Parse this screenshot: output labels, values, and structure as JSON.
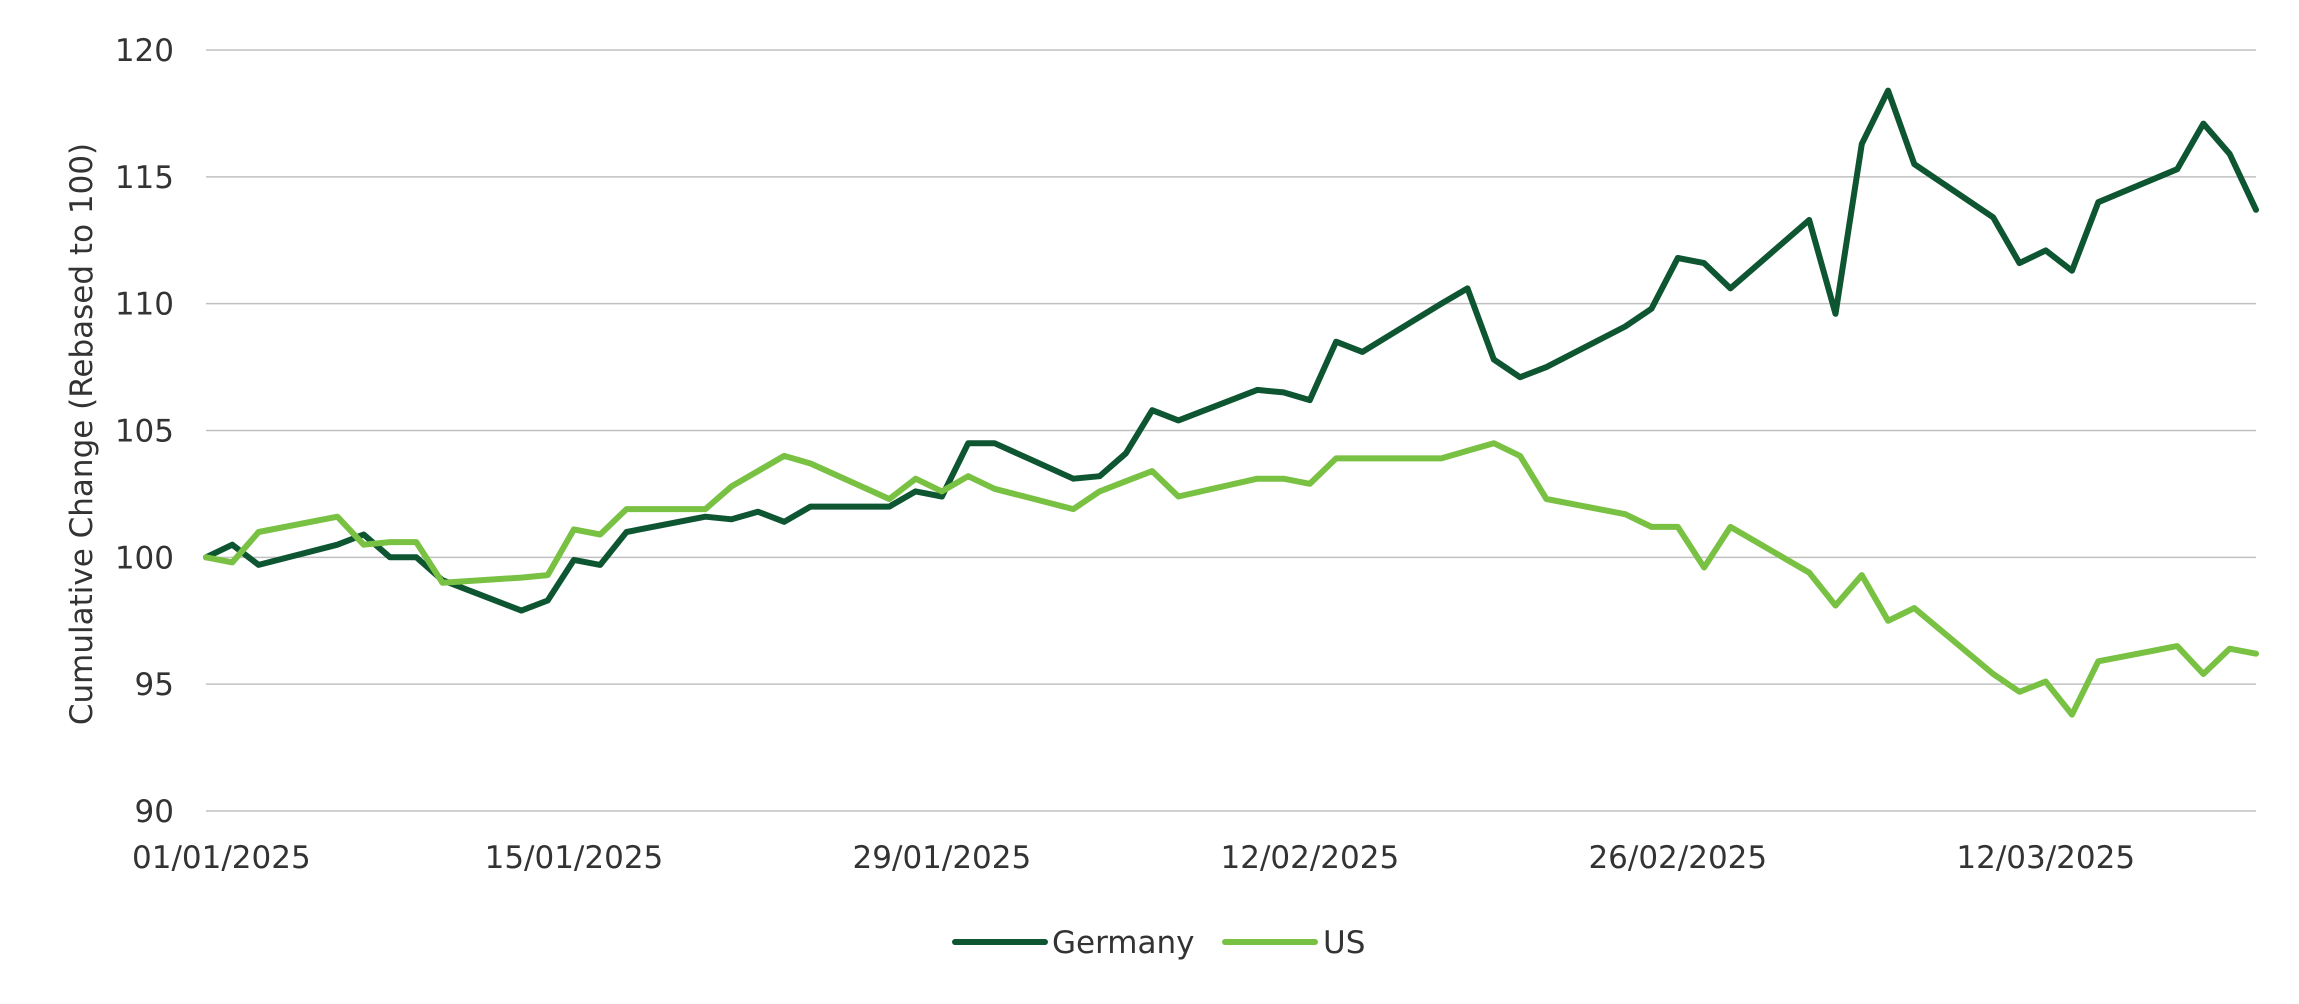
{
  "chart_data": {
    "type": "line",
    "title": "",
    "xlabel": "",
    "ylabel": "Cumulative Change (Rebased to 100)",
    "ylim": [
      90,
      120
    ],
    "yticks": [
      90,
      95,
      100,
      105,
      110,
      115,
      120
    ],
    "xlim": [
      "2025-01-01",
      "2025-03-20"
    ],
    "xticks": [
      {
        "date": "2025-01-01",
        "label": "01/01/2025"
      },
      {
        "date": "2025-01-15",
        "label": "15/01/2025"
      },
      {
        "date": "2025-01-29",
        "label": "29/01/2025"
      },
      {
        "date": "2025-02-12",
        "label": "12/02/2025"
      },
      {
        "date": "2025-02-26",
        "label": "26/02/2025"
      },
      {
        "date": "2025-03-12",
        "label": "12/03/2025"
      }
    ],
    "grid": "horizontal",
    "legend_position": "bottom-center",
    "series": [
      {
        "name": "Germany",
        "color": "#0e5532",
        "points": [
          [
            "2025-01-01",
            100.0
          ],
          [
            "2025-01-02",
            100.5
          ],
          [
            "2025-01-03",
            99.7
          ],
          [
            "2025-01-06",
            100.5
          ],
          [
            "2025-01-07",
            100.9
          ],
          [
            "2025-01-08",
            100.0
          ],
          [
            "2025-01-09",
            100.0
          ],
          [
            "2025-01-10",
            99.1
          ],
          [
            "2025-01-13",
            97.9
          ],
          [
            "2025-01-14",
            98.3
          ],
          [
            "2025-01-15",
            99.9
          ],
          [
            "2025-01-16",
            99.7
          ],
          [
            "2025-01-17",
            101.0
          ],
          [
            "2025-01-20",
            101.6
          ],
          [
            "2025-01-21",
            101.5
          ],
          [
            "2025-01-22",
            101.8
          ],
          [
            "2025-01-23",
            101.4
          ],
          [
            "2025-01-24",
            102.0
          ],
          [
            "2025-01-27",
            102.0
          ],
          [
            "2025-01-28",
            102.6
          ],
          [
            "2025-01-29",
            102.4
          ],
          [
            "2025-01-30",
            104.5
          ],
          [
            "2025-01-31",
            104.5
          ],
          [
            "2025-02-03",
            103.1
          ],
          [
            "2025-02-04",
            103.2
          ],
          [
            "2025-02-05",
            104.1
          ],
          [
            "2025-02-06",
            105.8
          ],
          [
            "2025-02-07",
            105.4
          ],
          [
            "2025-02-10",
            106.6
          ],
          [
            "2025-02-11",
            106.5
          ],
          [
            "2025-02-12",
            106.2
          ],
          [
            "2025-02-13",
            108.5
          ],
          [
            "2025-02-14",
            108.1
          ],
          [
            "2025-02-17",
            110.0
          ],
          [
            "2025-02-18",
            110.6
          ],
          [
            "2025-02-19",
            107.8
          ],
          [
            "2025-02-20",
            107.1
          ],
          [
            "2025-02-21",
            107.5
          ],
          [
            "2025-02-24",
            109.1
          ],
          [
            "2025-02-25",
            109.8
          ],
          [
            "2025-02-26",
            111.8
          ],
          [
            "2025-02-27",
            111.6
          ],
          [
            "2025-02-28",
            110.6
          ],
          [
            "2025-03-03",
            113.3
          ],
          [
            "2025-03-04",
            109.6
          ],
          [
            "2025-03-05",
            116.3
          ],
          [
            "2025-03-06",
            118.4
          ],
          [
            "2025-03-07",
            115.5
          ],
          [
            "2025-03-10",
            113.4
          ],
          [
            "2025-03-11",
            111.6
          ],
          [
            "2025-03-12",
            112.1
          ],
          [
            "2025-03-13",
            111.3
          ],
          [
            "2025-03-14",
            114.0
          ],
          [
            "2025-03-17",
            115.3
          ],
          [
            "2025-03-18",
            117.1
          ],
          [
            "2025-03-19",
            115.9
          ],
          [
            "2025-03-20",
            113.7
          ]
        ]
      },
      {
        "name": "US",
        "color": "#79c142",
        "points": [
          [
            "2025-01-01",
            100.0
          ],
          [
            "2025-01-02",
            99.8
          ],
          [
            "2025-01-03",
            101.0
          ],
          [
            "2025-01-06",
            101.6
          ],
          [
            "2025-01-07",
            100.5
          ],
          [
            "2025-01-08",
            100.6
          ],
          [
            "2025-01-09",
            100.6
          ],
          [
            "2025-01-10",
            99.0
          ],
          [
            "2025-01-13",
            99.2
          ],
          [
            "2025-01-14",
            99.3
          ],
          [
            "2025-01-15",
            101.1
          ],
          [
            "2025-01-16",
            100.9
          ],
          [
            "2025-01-17",
            101.9
          ],
          [
            "2025-01-20",
            101.9
          ],
          [
            "2025-01-21",
            102.8
          ],
          [
            "2025-01-22",
            103.4
          ],
          [
            "2025-01-23",
            104.0
          ],
          [
            "2025-01-24",
            103.7
          ],
          [
            "2025-01-27",
            102.3
          ],
          [
            "2025-01-28",
            103.1
          ],
          [
            "2025-01-29",
            102.6
          ],
          [
            "2025-01-30",
            103.2
          ],
          [
            "2025-01-31",
            102.7
          ],
          [
            "2025-02-03",
            101.9
          ],
          [
            "2025-02-04",
            102.6
          ],
          [
            "2025-02-05",
            103.0
          ],
          [
            "2025-02-06",
            103.4
          ],
          [
            "2025-02-07",
            102.4
          ],
          [
            "2025-02-10",
            103.1
          ],
          [
            "2025-02-11",
            103.1
          ],
          [
            "2025-02-12",
            102.9
          ],
          [
            "2025-02-13",
            103.9
          ],
          [
            "2025-02-17",
            103.9
          ],
          [
            "2025-02-18",
            104.2
          ],
          [
            "2025-02-19",
            104.5
          ],
          [
            "2025-02-20",
            104.0
          ],
          [
            "2025-02-21",
            102.3
          ],
          [
            "2025-02-24",
            101.7
          ],
          [
            "2025-02-25",
            101.2
          ],
          [
            "2025-02-26",
            101.2
          ],
          [
            "2025-02-27",
            99.6
          ],
          [
            "2025-02-28",
            101.2
          ],
          [
            "2025-03-03",
            99.4
          ],
          [
            "2025-03-04",
            98.1
          ],
          [
            "2025-03-05",
            99.3
          ],
          [
            "2025-03-06",
            97.5
          ],
          [
            "2025-03-07",
            98.0
          ],
          [
            "2025-03-10",
            95.4
          ],
          [
            "2025-03-11",
            94.7
          ],
          [
            "2025-03-12",
            95.1
          ],
          [
            "2025-03-13",
            93.8
          ],
          [
            "2025-03-14",
            95.9
          ],
          [
            "2025-03-17",
            96.5
          ],
          [
            "2025-03-18",
            95.4
          ],
          [
            "2025-03-19",
            96.4
          ],
          [
            "2025-03-20",
            96.2
          ]
        ]
      }
    ]
  }
}
